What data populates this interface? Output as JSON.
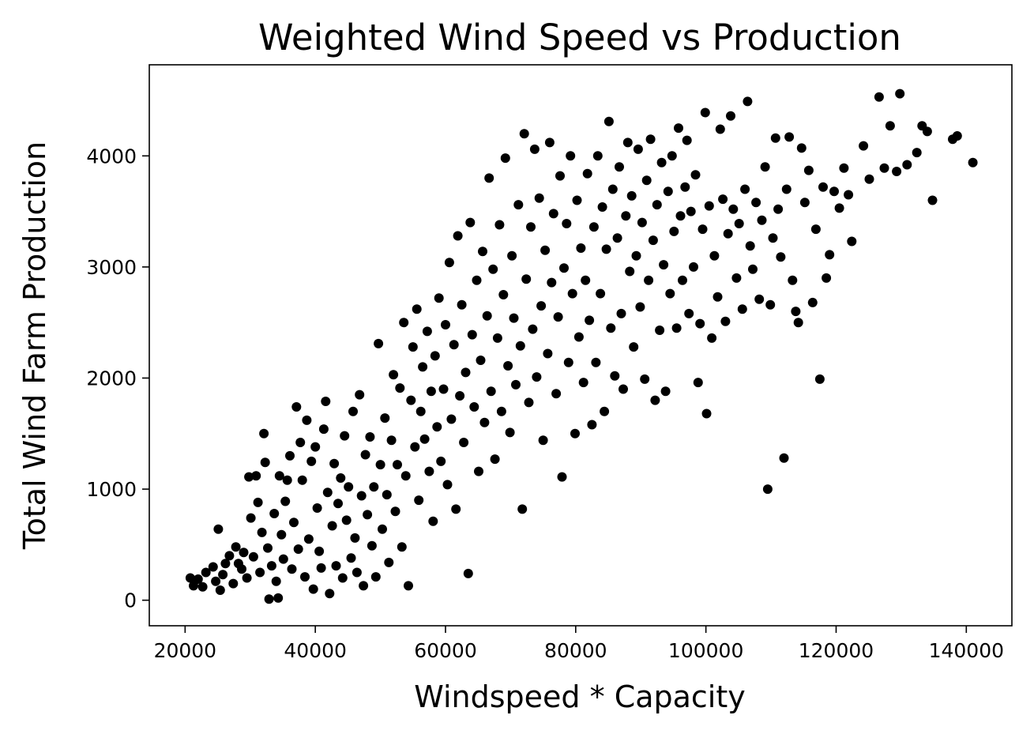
{
  "chart_data": {
    "type": "scatter",
    "title": "Weighted Wind Speed vs Production",
    "xlabel": "Windspeed * Capacity",
    "ylabel": "Total Wind Farm Production",
    "xlim": [
      14500,
      147000
    ],
    "ylim": [
      -230,
      4820
    ],
    "xticks": [
      20000,
      40000,
      60000,
      80000,
      100000,
      120000,
      140000
    ],
    "yticks": [
      0,
      1000,
      2000,
      3000,
      4000
    ],
    "grid": false,
    "legend": "none",
    "marker_color": "#000000",
    "series": [
      {
        "points": [
          [
            20800,
            200
          ],
          [
            21300,
            130
          ],
          [
            22000,
            190
          ],
          [
            22700,
            120
          ],
          [
            23200,
            250
          ],
          [
            24300,
            300
          ],
          [
            24700,
            170
          ],
          [
            25100,
            640
          ],
          [
            25400,
            90
          ],
          [
            25800,
            230
          ],
          [
            26200,
            330
          ],
          [
            26800,
            400
          ],
          [
            27400,
            150
          ],
          [
            27800,
            480
          ],
          [
            28200,
            330
          ],
          [
            28700,
            280
          ],
          [
            29000,
            430
          ],
          [
            29500,
            200
          ],
          [
            29800,
            1110
          ],
          [
            30100,
            740
          ],
          [
            30500,
            390
          ],
          [
            30900,
            1120
          ],
          [
            31200,
            880
          ],
          [
            31500,
            250
          ],
          [
            31800,
            610
          ],
          [
            32100,
            1500
          ],
          [
            32300,
            1240
          ],
          [
            32700,
            470
          ],
          [
            32900,
            10
          ],
          [
            33300,
            310
          ],
          [
            33700,
            780
          ],
          [
            34000,
            170
          ],
          [
            34300,
            20
          ],
          [
            34500,
            1120
          ],
          [
            34800,
            590
          ],
          [
            35100,
            370
          ],
          [
            35400,
            890
          ],
          [
            35700,
            1080
          ],
          [
            36100,
            1300
          ],
          [
            36400,
            280
          ],
          [
            36700,
            700
          ],
          [
            37100,
            1740
          ],
          [
            37400,
            460
          ],
          [
            37700,
            1420
          ],
          [
            38000,
            1080
          ],
          [
            38400,
            210
          ],
          [
            38700,
            1620
          ],
          [
            39000,
            550
          ],
          [
            39400,
            1250
          ],
          [
            39700,
            100
          ],
          [
            40000,
            1380
          ],
          [
            40300,
            830
          ],
          [
            40600,
            440
          ],
          [
            40900,
            290
          ],
          [
            41300,
            1540
          ],
          [
            41600,
            1790
          ],
          [
            41900,
            970
          ],
          [
            42200,
            60
          ],
          [
            42600,
            670
          ],
          [
            42900,
            1230
          ],
          [
            43200,
            310
          ],
          [
            43500,
            870
          ],
          [
            43900,
            1100
          ],
          [
            44200,
            200
          ],
          [
            44500,
            1480
          ],
          [
            44800,
            720
          ],
          [
            45100,
            1020
          ],
          [
            45500,
            380
          ],
          [
            45800,
            1700
          ],
          [
            46100,
            560
          ],
          [
            46400,
            250
          ],
          [
            46800,
            1850
          ],
          [
            47100,
            940
          ],
          [
            47400,
            130
          ],
          [
            47700,
            1310
          ],
          [
            48000,
            770
          ],
          [
            48400,
            1470
          ],
          [
            48700,
            490
          ],
          [
            49000,
            1020
          ],
          [
            49300,
            210
          ],
          [
            49700,
            2310
          ],
          [
            50000,
            1220
          ],
          [
            50300,
            640
          ],
          [
            50700,
            1640
          ],
          [
            51000,
            950
          ],
          [
            51300,
            340
          ],
          [
            51700,
            1440
          ],
          [
            52000,
            2030
          ],
          [
            52300,
            800
          ],
          [
            52600,
            1220
          ],
          [
            53000,
            1910
          ],
          [
            53300,
            480
          ],
          [
            53600,
            2500
          ],
          [
            53900,
            1120
          ],
          [
            54300,
            130
          ],
          [
            54700,
            1800
          ],
          [
            55000,
            2280
          ],
          [
            55300,
            1380
          ],
          [
            55600,
            2620
          ],
          [
            55900,
            900
          ],
          [
            56200,
            1700
          ],
          [
            56500,
            2100
          ],
          [
            56800,
            1450
          ],
          [
            57200,
            2420
          ],
          [
            57500,
            1160
          ],
          [
            57800,
            1880
          ],
          [
            58100,
            710
          ],
          [
            58400,
            2200
          ],
          [
            58700,
            1560
          ],
          [
            59000,
            2720
          ],
          [
            59300,
            1250
          ],
          [
            59700,
            1900
          ],
          [
            60000,
            2480
          ],
          [
            60300,
            1040
          ],
          [
            60600,
            3040
          ],
          [
            60900,
            1630
          ],
          [
            61300,
            2300
          ],
          [
            61600,
            820
          ],
          [
            61900,
            3280
          ],
          [
            62200,
            1840
          ],
          [
            62500,
            2660
          ],
          [
            62800,
            1420
          ],
          [
            63100,
            2050
          ],
          [
            63500,
            240
          ],
          [
            63800,
            3400
          ],
          [
            64100,
            2390
          ],
          [
            64400,
            1740
          ],
          [
            64800,
            2880
          ],
          [
            65100,
            1160
          ],
          [
            65400,
            2160
          ],
          [
            65700,
            3140
          ],
          [
            66000,
            1600
          ],
          [
            66400,
            2560
          ],
          [
            66700,
            3800
          ],
          [
            67000,
            1880
          ],
          [
            67300,
            2980
          ],
          [
            67600,
            1270
          ],
          [
            68000,
            2360
          ],
          [
            68300,
            3380
          ],
          [
            68600,
            1700
          ],
          [
            68900,
            2750
          ],
          [
            69200,
            3980
          ],
          [
            69600,
            2110
          ],
          [
            69900,
            1510
          ],
          [
            70200,
            3100
          ],
          [
            70500,
            2540
          ],
          [
            70800,
            1940
          ],
          [
            71200,
            3560
          ],
          [
            71500,
            2290
          ],
          [
            71800,
            820
          ],
          [
            72100,
            4200
          ],
          [
            72400,
            2890
          ],
          [
            72800,
            1780
          ],
          [
            73100,
            3360
          ],
          [
            73400,
            2440
          ],
          [
            73700,
            4060
          ],
          [
            74000,
            2010
          ],
          [
            74400,
            3620
          ],
          [
            74700,
            2650
          ],
          [
            75000,
            1440
          ],
          [
            75300,
            3150
          ],
          [
            75700,
            2220
          ],
          [
            76000,
            4120
          ],
          [
            76300,
            2860
          ],
          [
            76600,
            3480
          ],
          [
            77000,
            1860
          ],
          [
            77300,
            2550
          ],
          [
            77600,
            3820
          ],
          [
            77900,
            1110
          ],
          [
            78200,
            2990
          ],
          [
            78600,
            3390
          ],
          [
            78900,
            2140
          ],
          [
            79200,
            4000
          ],
          [
            79500,
            2760
          ],
          [
            79900,
            1500
          ],
          [
            80200,
            3600
          ],
          [
            80500,
            2370
          ],
          [
            80800,
            3170
          ],
          [
            81200,
            1960
          ],
          [
            81500,
            2880
          ],
          [
            81800,
            3840
          ],
          [
            82100,
            2520
          ],
          [
            82500,
            1580
          ],
          [
            82800,
            3360
          ],
          [
            83100,
            2140
          ],
          [
            83400,
            4000
          ],
          [
            83800,
            2760
          ],
          [
            84100,
            3540
          ],
          [
            84400,
            1700
          ],
          [
            84700,
            3160
          ],
          [
            85100,
            4310
          ],
          [
            85400,
            2450
          ],
          [
            85700,
            3700
          ],
          [
            86000,
            2020
          ],
          [
            86400,
            3260
          ],
          [
            86700,
            3900
          ],
          [
            87000,
            2580
          ],
          [
            87300,
            1900
          ],
          [
            87700,
            3460
          ],
          [
            88000,
            4120
          ],
          [
            88300,
            2960
          ],
          [
            88600,
            3640
          ],
          [
            88900,
            2280
          ],
          [
            89300,
            3100
          ],
          [
            89600,
            4060
          ],
          [
            89900,
            2640
          ],
          [
            90200,
            3400
          ],
          [
            90600,
            1990
          ],
          [
            90900,
            3780
          ],
          [
            91200,
            2880
          ],
          [
            91500,
            4150
          ],
          [
            91900,
            3240
          ],
          [
            92200,
            1800
          ],
          [
            92500,
            3560
          ],
          [
            92900,
            2430
          ],
          [
            93200,
            3940
          ],
          [
            93500,
            3020
          ],
          [
            93800,
            1880
          ],
          [
            94200,
            3680
          ],
          [
            94500,
            2760
          ],
          [
            94800,
            4000
          ],
          [
            95100,
            3320
          ],
          [
            95500,
            2450
          ],
          [
            95800,
            4250
          ],
          [
            96100,
            3460
          ],
          [
            96400,
            2880
          ],
          [
            96800,
            3720
          ],
          [
            97100,
            4140
          ],
          [
            97400,
            2580
          ],
          [
            97700,
            3500
          ],
          [
            98100,
            3000
          ],
          [
            98400,
            3830
          ],
          [
            98800,
            1960
          ],
          [
            99100,
            2490
          ],
          [
            99500,
            3340
          ],
          [
            99900,
            4390
          ],
          [
            100100,
            1680
          ],
          [
            100500,
            3550
          ],
          [
            100900,
            2360
          ],
          [
            101300,
            3100
          ],
          [
            101800,
            2730
          ],
          [
            102200,
            4240
          ],
          [
            102600,
            3610
          ],
          [
            103000,
            2510
          ],
          [
            103400,
            3300
          ],
          [
            103800,
            4360
          ],
          [
            104200,
            3520
          ],
          [
            104700,
            2900
          ],
          [
            105100,
            3390
          ],
          [
            105600,
            2620
          ],
          [
            106000,
            3700
          ],
          [
            106400,
            4490
          ],
          [
            106800,
            3190
          ],
          [
            107200,
            2980
          ],
          [
            107700,
            3580
          ],
          [
            108200,
            2710
          ],
          [
            108600,
            3420
          ],
          [
            109100,
            3900
          ],
          [
            109500,
            1000
          ],
          [
            109900,
            2660
          ],
          [
            110300,
            3260
          ],
          [
            110700,
            4160
          ],
          [
            111100,
            3520
          ],
          [
            111500,
            3090
          ],
          [
            112000,
            1280
          ],
          [
            112400,
            3700
          ],
          [
            112800,
            4170
          ],
          [
            113300,
            2880
          ],
          [
            113800,
            2600
          ],
          [
            114200,
            2500
          ],
          [
            114700,
            4070
          ],
          [
            115200,
            3580
          ],
          [
            115800,
            3870
          ],
          [
            116400,
            2680
          ],
          [
            116900,
            3340
          ],
          [
            117500,
            1990
          ],
          [
            118000,
            3720
          ],
          [
            118500,
            2900
          ],
          [
            119000,
            3110
          ],
          [
            119700,
            3680
          ],
          [
            120500,
            3530
          ],
          [
            121200,
            3890
          ],
          [
            121900,
            3650
          ],
          [
            122400,
            3230
          ],
          [
            124200,
            4090
          ],
          [
            125100,
            3790
          ],
          [
            126600,
            4530
          ],
          [
            127400,
            3890
          ],
          [
            128300,
            4270
          ],
          [
            129300,
            3860
          ],
          [
            129800,
            4560
          ],
          [
            130900,
            3920
          ],
          [
            132400,
            4030
          ],
          [
            133200,
            4270
          ],
          [
            134000,
            4220
          ],
          [
            134800,
            3600
          ],
          [
            137900,
            4150
          ],
          [
            138600,
            4180
          ],
          [
            141000,
            3940
          ]
        ]
      }
    ]
  }
}
